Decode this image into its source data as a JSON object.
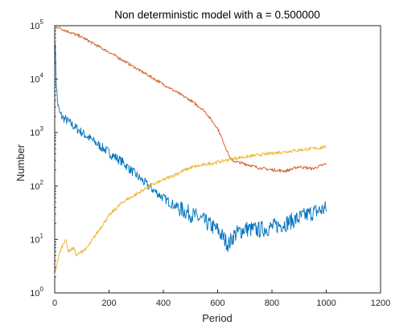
{
  "chart_data": {
    "type": "line",
    "title": "Non deterministic model with a = 0.500000",
    "xlabel": "Period",
    "ylabel": "Number",
    "xlim": [
      0,
      1200
    ],
    "ylim": [
      1,
      100000
    ],
    "yscale": "log",
    "grid": false,
    "legend": "none",
    "x_ticks": [
      "0",
      "200",
      "400",
      "600",
      "800",
      "1000",
      "1200"
    ],
    "y_ticks": [
      {
        "base": "10",
        "exp": "0"
      },
      {
        "base": "10",
        "exp": "1"
      },
      {
        "base": "10",
        "exp": "2"
      },
      {
        "base": "10",
        "exp": "3"
      },
      {
        "base": "10",
        "exp": "4"
      },
      {
        "base": "10",
        "exp": "5"
      }
    ],
    "series": [
      {
        "color": "#0072BD",
        "x": [
          0,
          3,
          6,
          10,
          15,
          20,
          30,
          50,
          80,
          100,
          150,
          200,
          250,
          300,
          350,
          400,
          450,
          500,
          550,
          600,
          640,
          660,
          700,
          750,
          800,
          850,
          900,
          950,
          1000
        ],
        "y": [
          60000,
          30000,
          8000,
          4000,
          2700,
          2200,
          1900,
          1600,
          1200,
          1000,
          650,
          420,
          280,
          160,
          95,
          60,
          40,
          30,
          22,
          15,
          8,
          12,
          16,
          15,
          17,
          20,
          25,
          32,
          38
        ]
      },
      {
        "color": "#D95319",
        "x": [
          0,
          5,
          100,
          200,
          300,
          400,
          500,
          550,
          600,
          650,
          700,
          750,
          800,
          850,
          900,
          950,
          1000
        ],
        "y": [
          100000,
          96000,
          61000,
          32000,
          16000,
          8000,
          4000,
          2600,
          1200,
          300,
          260,
          220,
          200,
          190,
          230,
          210,
          260
        ]
      },
      {
        "color": "#EDB120",
        "x": [
          0,
          5,
          20,
          30,
          40,
          50,
          70,
          80,
          100,
          120,
          140,
          150,
          200,
          250,
          300,
          350,
          400,
          450,
          500,
          550,
          600,
          650,
          700,
          750,
          800,
          850,
          900,
          950,
          1000
        ],
        "y": [
          2,
          3,
          6,
          8,
          10,
          6,
          7,
          5,
          6,
          7,
          10,
          12,
          28,
          50,
          70,
          100,
          130,
          170,
          220,
          250,
          280,
          320,
          350,
          380,
          410,
          440,
          470,
          500,
          540
        ]
      }
    ]
  }
}
